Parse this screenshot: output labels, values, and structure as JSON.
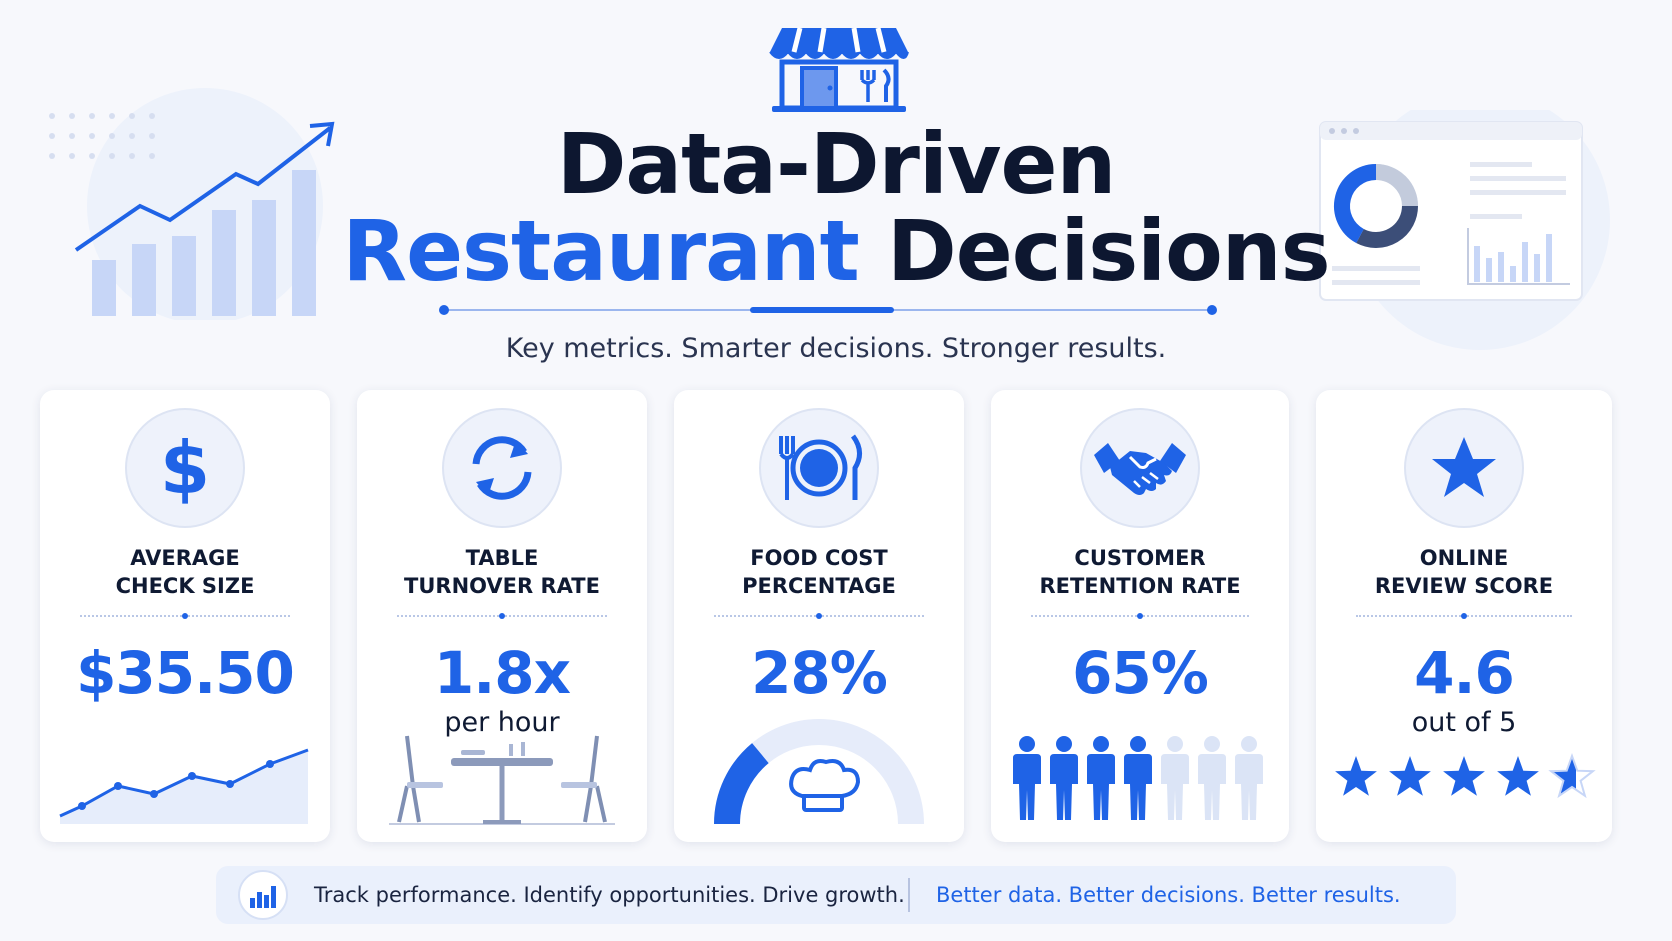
{
  "header": {
    "title_line1": "Data-Driven",
    "title_line2_accent": "Restaurant",
    "title_line2_rest": " Decisions",
    "subtitle": "Key metrics. Smarter decisions. Stronger results."
  },
  "colors": {
    "accent": "#1f63e6",
    "accent_light": "#c7d6f7",
    "dark_text": "#0d1730",
    "card_bg": "#ffffff",
    "page_bg": "#f7f8fc"
  },
  "metrics": [
    {
      "icon": "dollar-icon",
      "label": "AVERAGE\nCHECK SIZE",
      "value": "$35.50",
      "sub": ""
    },
    {
      "icon": "refresh-icon",
      "label": "TABLE\nTURNOVER RATE",
      "value": "1.8x",
      "sub": "per hour"
    },
    {
      "icon": "plate-cutlery-icon",
      "label": "FOOD COST\nPERCENTAGE",
      "value": "28%",
      "sub": "",
      "gauge_fraction": 0.28
    },
    {
      "icon": "handshake-icon",
      "label": "CUSTOMER\nRETENTION RATE",
      "value": "65%",
      "sub": "",
      "people_total": 7,
      "people_filled": 4
    },
    {
      "icon": "star-icon",
      "label": "ONLINE\nREVIEW SCORE",
      "value": "4.6",
      "sub": "out of 5",
      "rating": 4.6,
      "rating_max": 5
    }
  ],
  "footer": {
    "icon": "bar-chart-icon",
    "left_text": "Track performance. Identify opportunities. Drive growth.",
    "right_text": "Better data. Better decisions. Better results."
  }
}
